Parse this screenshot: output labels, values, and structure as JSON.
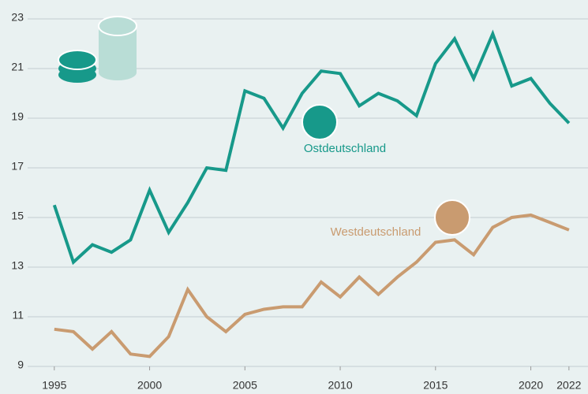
{
  "chart_data": {
    "type": "line",
    "x": [
      1995,
      1996,
      1997,
      1998,
      1999,
      2000,
      2001,
      2002,
      2003,
      2004,
      2005,
      2006,
      2007,
      2008,
      2009,
      2010,
      2011,
      2012,
      2013,
      2014,
      2015,
      2016,
      2017,
      2018,
      2019,
      2020,
      2021,
      2022
    ],
    "series": [
      {
        "name": "Ostdeutschland",
        "color": "#17998a",
        "values": [
          15.5,
          13.2,
          13.9,
          13.6,
          14.1,
          16.1,
          14.4,
          15.6,
          17.0,
          16.9,
          20.1,
          19.8,
          18.6,
          20.0,
          20.9,
          20.8,
          19.5,
          20.0,
          19.7,
          19.1,
          21.2,
          22.2,
          20.6,
          22.4,
          20.3,
          20.6,
          19.6,
          18.8
        ]
      },
      {
        "name": "Westdeutschland",
        "color": "#c99b70",
        "values": [
          10.5,
          10.4,
          9.7,
          10.4,
          9.5,
          9.4,
          10.2,
          12.1,
          11.0,
          10.4,
          11.1,
          11.3,
          11.4,
          11.4,
          12.4,
          11.8,
          12.6,
          11.9,
          12.6,
          13.2,
          14.0,
          14.1,
          13.5,
          14.6,
          15.0,
          15.1,
          14.8,
          14.5
        ]
      }
    ],
    "xlim": [
      1993.6,
      2023.0
    ],
    "xticks": [
      1995,
      2000,
      2005,
      2010,
      2015,
      2020,
      2022
    ],
    "ylim": [
      9,
      23
    ],
    "yticks": [
      9,
      11,
      13,
      15,
      17,
      19,
      21,
      23
    ],
    "grid": true
  }
}
